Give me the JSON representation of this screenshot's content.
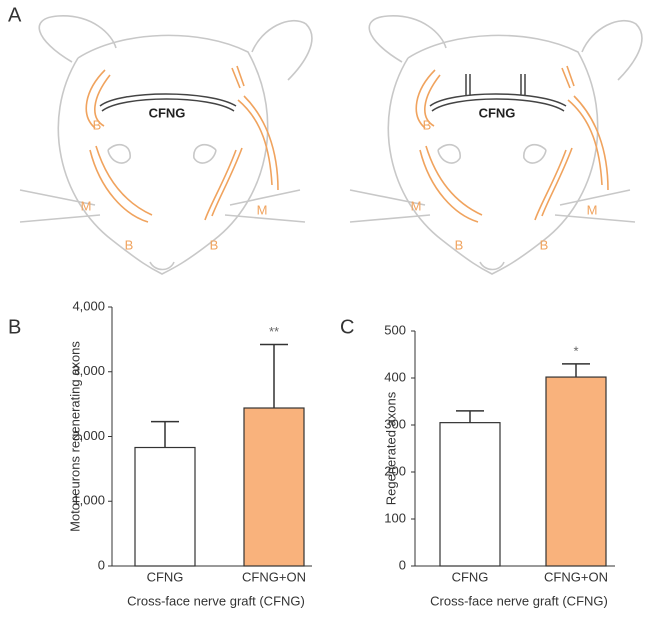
{
  "panel_labels": [
    "A",
    "B",
    "C"
  ],
  "diagrams": [
    {
      "graft": "CFNG",
      "labels": [
        "B",
        "M",
        "B",
        "M",
        "B"
      ]
    },
    {
      "graft": "CFNG",
      "branches": [
        "ON",
        "ON"
      ],
      "labels": [
        "B",
        "M",
        "B",
        "M",
        "B"
      ]
    }
  ],
  "chart_data": [
    {
      "type": "bar",
      "categories": [
        "CFNG",
        "CFNG+ON"
      ],
      "values": [
        1830,
        2440
      ],
      "errors": [
        400,
        980
      ],
      "significance": [
        null,
        "**"
      ],
      "colors": [
        "#ffffff",
        "#f9b27c"
      ],
      "ylabel": "Motoneurons regenerating axons",
      "xlabel": "Cross-face nerve graft (CFNG)",
      "ylim": [
        0,
        4000
      ],
      "yticks": [
        0,
        {
          "value": 1000,
          "label": "1,000"
        },
        {
          "value": 2000,
          "label": "2,000"
        },
        {
          "value": 3000,
          "label": "3,000"
        },
        {
          "value": 4000,
          "label": "4,000"
        }
      ]
    },
    {
      "type": "bar",
      "categories": [
        "CFNG",
        "CFNG+ON"
      ],
      "values": [
        305,
        402
      ],
      "errors": [
        25,
        28
      ],
      "significance": [
        null,
        "*"
      ],
      "colors": [
        "#ffffff",
        "#f9b27c"
      ],
      "ylabel": "Regenerated axons",
      "xlabel": "Cross-face nerve graft (CFNG)",
      "ylim": [
        0,
        500
      ],
      "yticks": [
        0,
        100,
        200,
        300,
        400,
        500
      ]
    }
  ]
}
